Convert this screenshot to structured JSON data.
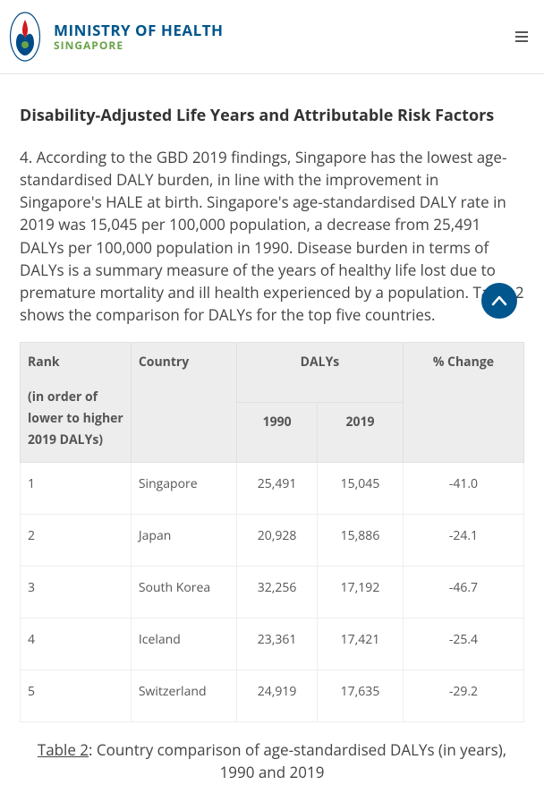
{
  "colors": {
    "brand_main": "#00568d",
    "brand_sub": "#6aa24a",
    "text_heading": "#333333",
    "text_body": "#444444",
    "text_cell": "#555555",
    "table_header_bg": "#ededed",
    "table_border": "#e0e0e0",
    "row_border": "#eeeeee",
    "scroll_bg": "#00568d",
    "scroll_arrow": "#ffffff",
    "logo_red": "#d11a1f",
    "logo_blue": "#004b87",
    "logo_green": "#6aa24a"
  },
  "header": {
    "brand_main": "MINISTRY OF HEALTH",
    "brand_sub": "SINGAPORE"
  },
  "section": {
    "heading": "Disability-Adjusted Life Years and Attributable Risk Factors",
    "paragraph": "4. According to the GBD 2019 findings, Singapore has the lowest age-standardised DALY burden, in line with the improvement in Singapore's HALE at birth. Singapore's age-standardised DALY rate in 2019 was 15,045 per 100,000 population, a decrease from 25,491 DALYs per 100,000 population in 1990. Disease burden in terms of DALYs is a summary measure of the years of healthy life lost due to premature mortality and ill health experienced by a population. Table 2 shows the comparison for DALYs for the top five countries."
  },
  "table": {
    "headers": {
      "rank_main": "Rank",
      "rank_sub": "(in order of lower to higher 2019 DALYs)",
      "country": "Country",
      "dalys": "DALYs",
      "y1990": "1990",
      "y2019": "2019",
      "change": "% Change"
    },
    "rows": [
      {
        "rank": "1",
        "country": "Singapore",
        "y1990": "25,491",
        "y2019": "15,045",
        "change": "-41.0"
      },
      {
        "rank": "2",
        "country": "Japan",
        "y1990": "20,928",
        "y2019": "15,886",
        "change": "-24.1"
      },
      {
        "rank": "3",
        "country": "South Korea",
        "y1990": "32,256",
        "y2019": "17,192",
        "change": "-46.7"
      },
      {
        "rank": "4",
        "country": "Iceland",
        "y1990": "23,361",
        "y2019": "17,421",
        "change": "-25.4"
      },
      {
        "rank": "5",
        "country": "Switzerland",
        "y1990": "24,919",
        "y2019": "17,635",
        "change": "-29.2"
      }
    ],
    "caption_label": "Table 2",
    "caption_rest": ": Country comparison of age-standardised DALYs (in years), 1990 and 2019"
  }
}
